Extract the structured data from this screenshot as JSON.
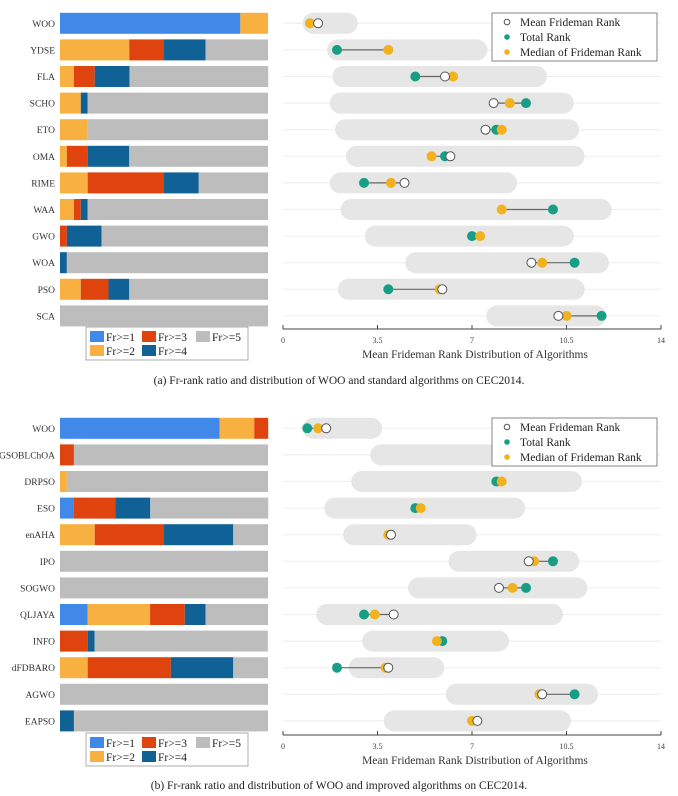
{
  "colors": {
    "fr1": "#4189e8",
    "fr2": "#f8b040",
    "fr3": "#e0440e",
    "fr4": "#0f6196",
    "fr5": "#bdbdbd",
    "total": "#169e86",
    "median": "#f2b21e",
    "mean_stroke": "#555555",
    "range": "#e6e6e6"
  },
  "chart_data": [
    {
      "id": "a",
      "caption": "(a)  Fr-rank ratio and distribution of WOO and standard algorithms on CEC2014.",
      "stacked_bar": {
        "type": "bar",
        "orientation": "horizontal-stacked-100",
        "legend": [
          "Fr>=1",
          "Fr>=2",
          "Fr>=3",
          "Fr>=4",
          "Fr>=5"
        ],
        "legend_position": "bottom",
        "categories": [
          "WOO",
          "YDSE",
          "FLA",
          "SCHO",
          "ETO",
          "OMA",
          "RIME",
          "WAA",
          "GWO",
          "WOA",
          "PSO",
          "SCA"
        ],
        "series": [
          {
            "name": "Fr>=1",
            "values": [
              0.867,
              0,
              0,
              0,
              0,
              0,
              0,
              0,
              0,
              0,
              0,
              0
            ]
          },
          {
            "name": "Fr>=2",
            "values": [
              0.133,
              0.333,
              0.067,
              0.1,
              0.133,
              0.033,
              0.133,
              0.067,
              0,
              0,
              0.1,
              0
            ]
          },
          {
            "name": "Fr>=3",
            "values": [
              0,
              0.167,
              0.1,
              0,
              0,
              0.1,
              0.367,
              0.033,
              0.033,
              0,
              0.133,
              0
            ]
          },
          {
            "name": "Fr>=4",
            "values": [
              0,
              0.2,
              0.167,
              0.033,
              0,
              0.2,
              0.167,
              0.033,
              0.167,
              0.033,
              0.1,
              0
            ]
          },
          {
            "name": "Fr>=5",
            "values": [
              0,
              0.3,
              0.667,
              0.867,
              0.867,
              0.667,
              0.333,
              0.867,
              0.8,
              0.967,
              0.667,
              1.0
            ]
          }
        ]
      },
      "dot_range": {
        "type": "scatter",
        "xlabel": "Mean Frideman Rank Distribution of Algorithms",
        "xlim": [
          0,
          14
        ],
        "xticks": [
          "0",
          "3.5",
          "7",
          "10.5",
          "14"
        ],
        "xtick_values": [
          0,
          3.5,
          7,
          10.5,
          14
        ],
        "legend": [
          "Mean Frideman Rank",
          "Total Rank",
          "Median of Frideman Rank"
        ],
        "legend_position": "top-right",
        "categories": [
          "WOO",
          "YDSE",
          "FLA",
          "SCHO",
          "ETO",
          "OMA",
          "RIME",
          "WAA",
          "GWO",
          "WOA",
          "PSO",
          "SCA"
        ],
        "range_min": [
          1.1,
          2.0,
          2.2,
          2.1,
          2.3,
          2.7,
          2.1,
          2.5,
          3.4,
          4.9,
          2.4,
          7.9
        ],
        "range_max": [
          2.4,
          7.2,
          9.4,
          10.4,
          10.6,
          10.8,
          8.3,
          11.8,
          10.4,
          11.7,
          10.8,
          11.6
        ],
        "mean": [
          1.3,
          null,
          6.0,
          7.8,
          7.5,
          6.2,
          4.5,
          null,
          null,
          9.2,
          5.9,
          10.2
        ],
        "total": [
          null,
          2.0,
          4.9,
          9.0,
          7.9,
          6.0,
          3.0,
          10.0,
          7.0,
          10.8,
          3.9,
          11.8
        ],
        "median": [
          1.0,
          3.9,
          6.3,
          8.4,
          8.1,
          5.5,
          4.0,
          8.1,
          7.3,
          9.6,
          5.8,
          10.5
        ]
      }
    },
    {
      "id": "b",
      "caption": "(b)  Fr-rank ratio and distribution of WOO and improved algorithms on CEC2014.",
      "stacked_bar": {
        "type": "bar",
        "orientation": "horizontal-stacked-100",
        "legend": [
          "Fr>=1",
          "Fr>=2",
          "Fr>=3",
          "Fr>=4",
          "Fr>=5"
        ],
        "legend_position": "bottom",
        "categories": [
          "WOO",
          "GSOBLChOA",
          "DRPSO",
          "ESO",
          "enAHA",
          "IPO",
          "SOGWO",
          "QLJAYA",
          "INFO",
          "dFDBARO",
          "AGWO",
          "EAPSO"
        ],
        "series": [
          {
            "name": "Fr>=1",
            "values": [
              0.767,
              0,
              0,
              0.067,
              0,
              0,
              0,
              0.133,
              0,
              0,
              0,
              0
            ]
          },
          {
            "name": "Fr>=2",
            "values": [
              0.167,
              0,
              0.033,
              0,
              0.167,
              0,
              0,
              0.3,
              0,
              0.133,
              0,
              0
            ]
          },
          {
            "name": "Fr>=3",
            "values": [
              0.067,
              0.067,
              0,
              0.2,
              0.333,
              0,
              0,
              0.167,
              0.133,
              0.4,
              0,
              0
            ]
          },
          {
            "name": "Fr>=4",
            "values": [
              0,
              0,
              0,
              0.167,
              0.333,
              0,
              0,
              0.1,
              0.033,
              0.3,
              0,
              0.067
            ]
          },
          {
            "name": "Fr>=5",
            "values": [
              0,
              0.933,
              0.967,
              0.567,
              0.167,
              1.0,
              1.0,
              0.3,
              0.833,
              0.167,
              1.0,
              0.933
            ]
          }
        ]
      },
      "dot_range": {
        "type": "scatter",
        "xlabel": "Mean Frideman Rank Distribution of Algorithms",
        "xlim": [
          0,
          14
        ],
        "xticks": [
          "0",
          "3.5",
          "7",
          "10.5",
          "14"
        ],
        "xtick_values": [
          0,
          3.5,
          7,
          10.5,
          14
        ],
        "legend": [
          "Mean Frideman Rank",
          "Total Rank",
          "Median of Frideman Rank"
        ],
        "legend_position": "top-right",
        "categories": [
          "WOO",
          "GSOBLChOA",
          "DRPSO",
          "ESO",
          "enAHA",
          "IPO",
          "SOGWO",
          "QLJAYA",
          "INFO",
          "dFDBARO",
          "AGWO",
          "EAPSO"
        ],
        "range_min": [
          1.1,
          3.6,
          2.9,
          1.9,
          2.6,
          6.5,
          5.0,
          1.6,
          3.3,
          2.8,
          6.4,
          4.1
        ],
        "range_max": [
          3.3,
          13.0,
          10.7,
          8.6,
          6.8,
          10.6,
          10.9,
          10.0,
          8.0,
          5.6,
          11.3,
          10.3
        ],
        "mean": [
          1.6,
          null,
          null,
          null,
          4.0,
          9.1,
          8.0,
          4.1,
          null,
          3.9,
          9.6,
          7.2
        ],
        "total": [
          0.9,
          null,
          7.9,
          4.9,
          null,
          10.0,
          9.0,
          3.0,
          5.9,
          2.0,
          10.8,
          null
        ],
        "median": [
          1.3,
          null,
          8.1,
          5.1,
          3.9,
          9.3,
          8.5,
          3.4,
          5.7,
          3.8,
          9.5,
          7.0
        ]
      }
    }
  ]
}
